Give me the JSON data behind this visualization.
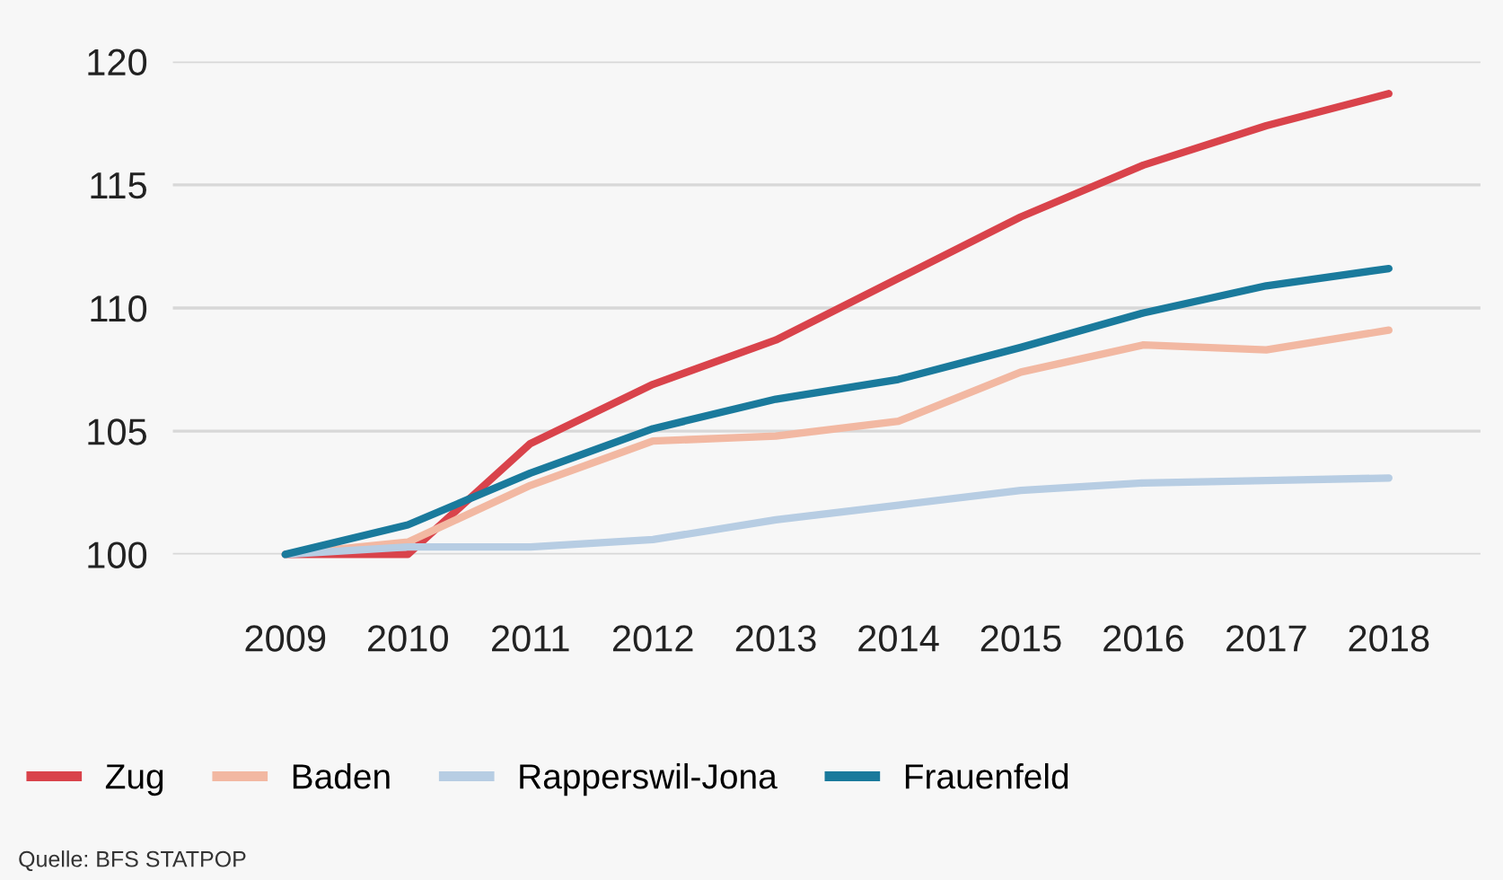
{
  "chart_data": {
    "type": "line",
    "x": [
      "2009",
      "2010",
      "2011",
      "2012",
      "2013",
      "2014",
      "2015",
      "2016",
      "2017",
      "2018"
    ],
    "series": [
      {
        "name": "Zug",
        "color": "#d9434b",
        "values": [
          100,
          100,
          104.5,
          106.9,
          108.7,
          111.2,
          113.7,
          115.8,
          117.4,
          118.7
        ]
      },
      {
        "name": "Baden",
        "color": "#f2b8a2",
        "values": [
          100,
          100.5,
          102.8,
          104.6,
          104.8,
          105.4,
          107.4,
          108.5,
          108.3,
          109.1
        ]
      },
      {
        "name": "Rapperswil-Jona",
        "color": "#b7cde3",
        "values": [
          100,
          100.3,
          100.3,
          100.6,
          101.4,
          102.0,
          102.6,
          102.9,
          103.0,
          103.1
        ]
      },
      {
        "name": "Frauenfeld",
        "color": "#1a7a9c",
        "values": [
          100,
          101.2,
          103.3,
          105.1,
          106.3,
          107.1,
          108.4,
          109.8,
          110.9,
          111.6
        ]
      }
    ],
    "xlim": [
      "2008-02",
      "2018-10"
    ],
    "ylim": [
      100,
      120
    ],
    "yticks": [
      100,
      105,
      110,
      115,
      120
    ],
    "xticks": [
      "2009",
      "2010",
      "2011",
      "2012",
      "2013",
      "2014",
      "2015",
      "2016",
      "2017",
      "2018"
    ],
    "grid": "y",
    "legend": "bottom left",
    "marker": "none",
    "line_style": "solid",
    "annotations": [
      "Quelle: BFS STATPOP"
    ]
  }
}
